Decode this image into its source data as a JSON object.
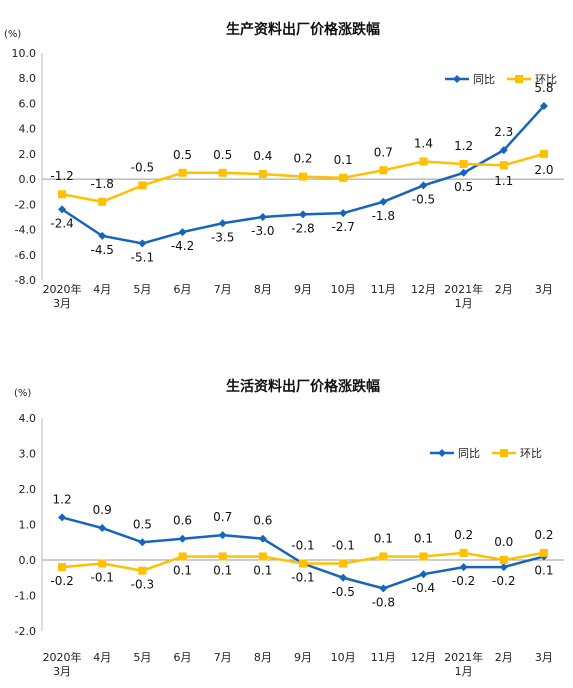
{
  "colors": {
    "yoy": "#1565C0",
    "mom": "#FFC000"
  },
  "chart_data": [
    {
      "type": "line",
      "title": "生产资料出厂价格涨跌幅",
      "unit": "(%)",
      "categories": [
        [
          "2020年",
          "3月"
        ],
        [
          "4月"
        ],
        [
          "5月"
        ],
        [
          "6月"
        ],
        [
          "7月"
        ],
        [
          "8月"
        ],
        [
          "9月"
        ],
        [
          "10月"
        ],
        [
          "11月"
        ],
        [
          "12月"
        ],
        [
          "2021年",
          "1月"
        ],
        [
          "2月"
        ],
        [
          "3月"
        ]
      ],
      "ylim": [
        -8,
        10
      ],
      "yticks": [
        "10.0",
        "8.0",
        "6.0",
        "4.0",
        "2.0",
        "0.0",
        "-2.0",
        "-4.0",
        "-6.0",
        "-8.0"
      ],
      "legend_position": "top-right",
      "series": [
        {
          "name": "同比",
          "key": "yoy",
          "values": [
            -2.4,
            -4.5,
            -5.1,
            -4.2,
            -3.5,
            -3.0,
            -2.8,
            -2.7,
            -1.8,
            -0.5,
            0.5,
            2.3,
            5.8
          ],
          "labels": [
            "-2.4",
            "-4.5",
            "-5.1",
            "-4.2",
            "-3.5",
            "-3.0",
            "-2.8",
            "-2.7",
            "-1.8",
            "-0.5",
            "0.5",
            "2.3",
            "5.8"
          ]
        },
        {
          "name": "环比",
          "key": "mom",
          "values": [
            -1.2,
            -1.8,
            -0.5,
            0.5,
            0.5,
            0.4,
            0.2,
            0.1,
            0.7,
            1.4,
            1.2,
            1.1,
            2.0
          ],
          "labels": [
            "-1.2",
            "-1.8",
            "-0.5",
            "0.5",
            "0.5",
            "0.4",
            "0.2",
            "0.1",
            "0.7",
            "1.4",
            "1.2",
            "1.1",
            "2.0"
          ]
        }
      ]
    },
    {
      "type": "line",
      "title": "生活资料出厂价格涨跌幅",
      "unit": "(%)",
      "categories": [
        [
          "2020年",
          "3月"
        ],
        [
          "4月"
        ],
        [
          "5月"
        ],
        [
          "6月"
        ],
        [
          "7月"
        ],
        [
          "8月"
        ],
        [
          "9月"
        ],
        [
          "10月"
        ],
        [
          "11月"
        ],
        [
          "12月"
        ],
        [
          "2021年",
          "1月"
        ],
        [
          "2月"
        ],
        [
          "3月"
        ]
      ],
      "ylim": [
        -2,
        4
      ],
      "yticks": [
        "4.0",
        "3.0",
        "2.0",
        "1.0",
        "0.0",
        "-1.0",
        "-2.0"
      ],
      "legend_position": "top-right",
      "series": [
        {
          "name": "同比",
          "key": "yoy",
          "values": [
            1.2,
            0.9,
            0.5,
            0.6,
            0.7,
            0.6,
            -0.1,
            -0.5,
            -0.8,
            -0.4,
            -0.2,
            -0.2,
            0.1
          ],
          "labels": [
            "1.2",
            "0.9",
            "0.5",
            "0.6",
            "0.7",
            "0.6",
            "-0.1",
            "-0.5",
            "-0.8",
            "-0.4",
            "-0.2",
            "-0.2",
            "0.1"
          ]
        },
        {
          "name": "环比",
          "key": "mom",
          "values": [
            -0.2,
            -0.1,
            -0.3,
            0.1,
            0.1,
            0.1,
            -0.1,
            -0.1,
            0.1,
            0.1,
            0.2,
            0.0,
            0.2
          ],
          "labels": [
            "-0.2",
            "-0.1",
            "-0.3",
            "0.1",
            "0.1",
            "0.1",
            "-0.1",
            "-0.1",
            "0.1",
            "0.1",
            "0.2",
            "0.0",
            "0.2"
          ]
        }
      ]
    }
  ]
}
